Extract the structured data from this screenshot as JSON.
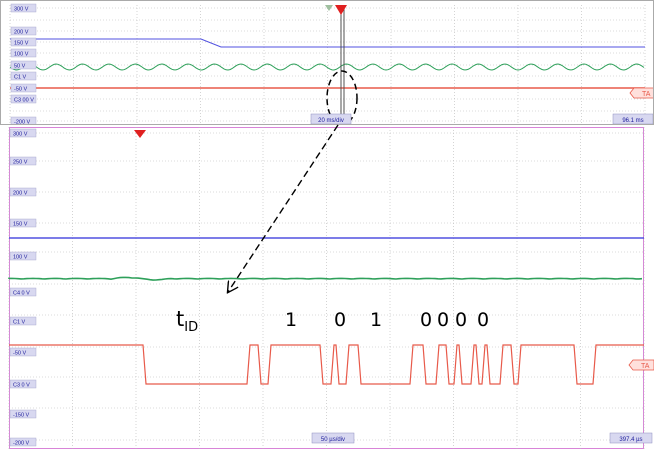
{
  "top_panel": {
    "y_ticks": [
      "300 V",
      "200 V",
      "150 V",
      "100 V",
      "50 V",
      "C1 V",
      "-50 V",
      "C3 00 V",
      "-200 V"
    ],
    "time_div": "20 ms/div",
    "time_offset": "96.1 ms",
    "trace_label": "TA",
    "trigger_color": "#e02020"
  },
  "bottom_panel": {
    "y_ticks": [
      "300 V",
      "250 V",
      "200 V",
      "150 V",
      "100 V",
      "C4 0 V",
      "C1 V",
      "-50 V",
      "C3 0 V",
      "-150 V",
      "-200 V"
    ],
    "time_div": "50 µs/div",
    "time_offset": "397.4 µs",
    "trace_label": "TA",
    "trigger_color": "#e02020"
  },
  "annotations": {
    "tid_main": "t",
    "tid_sub": "ID",
    "bits": [
      "1",
      "0",
      "1",
      "0",
      "0",
      "0",
      "0"
    ]
  },
  "colors": {
    "blue_trace": "#5050e0",
    "green_trace": "#2ea05a",
    "red_trace": "#e85a4a",
    "grid": "#b8b8b8",
    "tick_label": "#1a1a9a",
    "tick_bg": "#d8d8f0"
  }
}
